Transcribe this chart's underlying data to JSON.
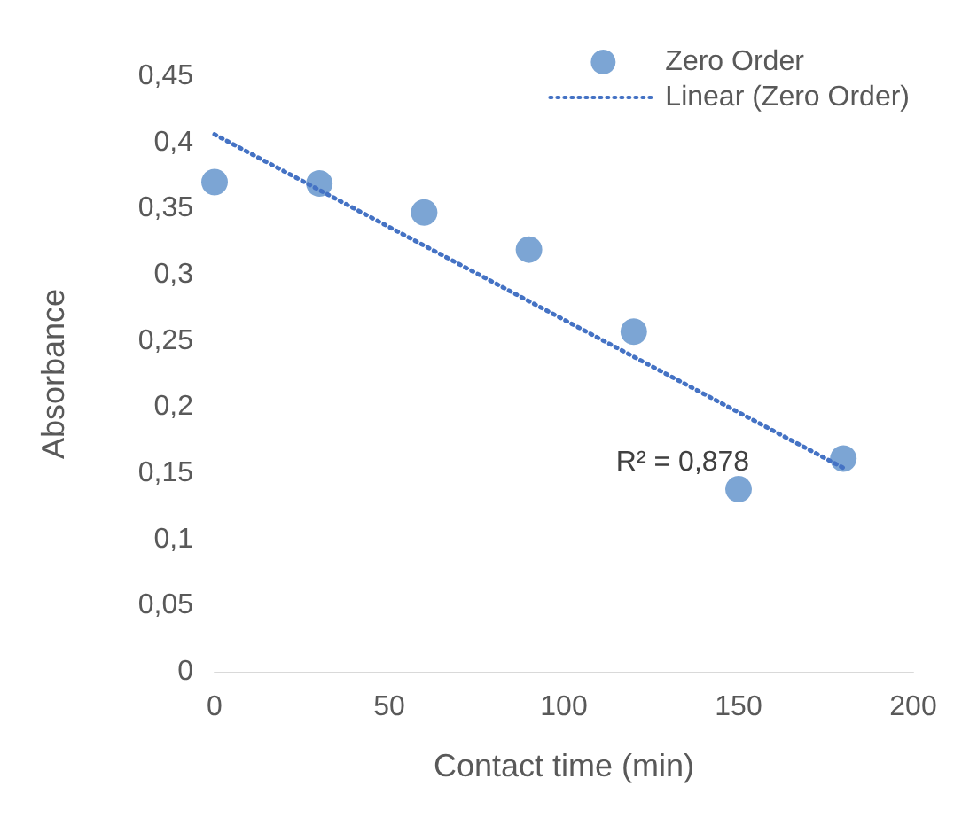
{
  "chart_data": {
    "type": "scatter",
    "xlabel": "Contact time (min)",
    "ylabel": "Absorbance",
    "xlim": [
      0,
      200
    ],
    "xticks": [
      0,
      50,
      100,
      150,
      200
    ],
    "ylim": [
      0,
      0.45
    ],
    "yticks": [
      {
        "value": 0,
        "label": "0"
      },
      {
        "value": 0.05,
        "label": "0,05"
      },
      {
        "value": 0.1,
        "label": "0,1"
      },
      {
        "value": 0.15,
        "label": "0,15"
      },
      {
        "value": 0.2,
        "label": "0,2"
      },
      {
        "value": 0.25,
        "label": "0,25"
      },
      {
        "value": 0.3,
        "label": "0,3"
      },
      {
        "value": 0.35,
        "label": "0,35"
      },
      {
        "value": 0.4,
        "label": "0,4"
      },
      {
        "value": 0.45,
        "label": "0,45"
      }
    ],
    "grid": false,
    "legend": "top right",
    "series": [
      {
        "name": "Zero Order",
        "marker": "circle",
        "color": "#5b8fc9",
        "x": [
          0,
          30,
          60,
          90,
          120,
          150,
          180
        ],
        "values": [
          0.37,
          0.369,
          0.347,
          0.319,
          0.257,
          0.138,
          0.161
        ]
      },
      {
        "name": "Linear (Zero Order)",
        "type": "line",
        "marker": "none",
        "line_style": "dotted",
        "color": "#4472c4",
        "x": [
          0,
          180
        ],
        "values": [
          0.406,
          0.154
        ]
      }
    ],
    "annotations": [
      "R² = 0,878"
    ]
  }
}
